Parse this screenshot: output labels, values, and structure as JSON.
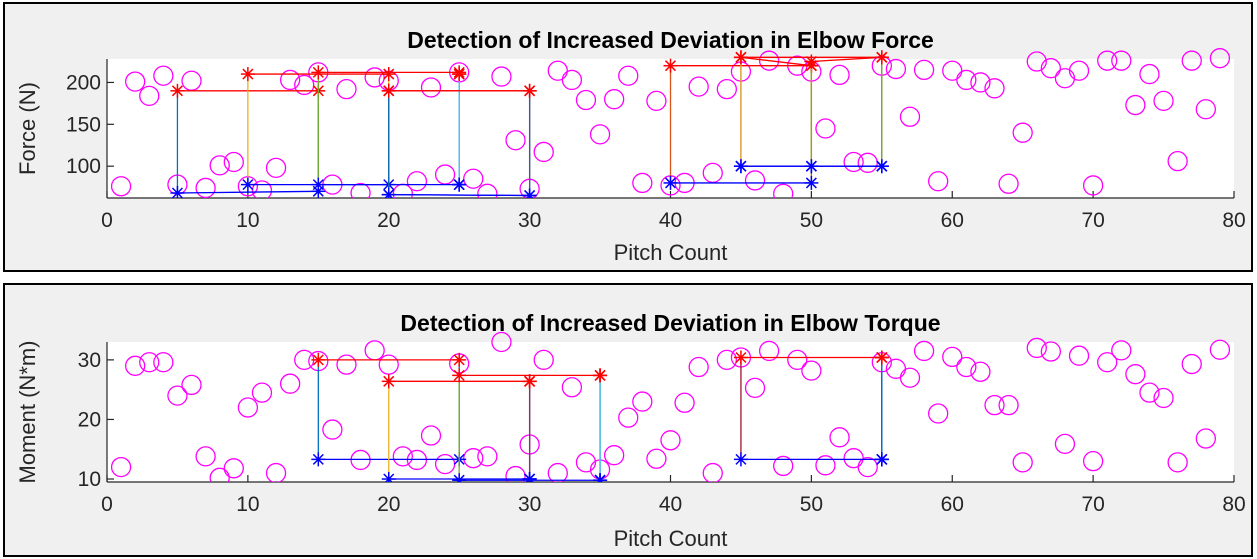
{
  "chart_data": [
    {
      "type": "scatter",
      "title": "Detection of Increased Deviation in Elbow Force",
      "xlabel": "Pitch Count",
      "ylabel": "Force (N)",
      "xlim": [
        0,
        80
      ],
      "ylim": [
        62,
        228
      ],
      "xticks": [
        "0",
        "10",
        "20",
        "30",
        "40",
        "50",
        "60",
        "70",
        "80"
      ],
      "xtick_values": [
        0,
        10,
        20,
        30,
        40,
        50,
        60,
        70,
        80
      ],
      "yticks": [
        "100",
        "150",
        "200"
      ],
      "ytick_values": [
        100,
        150,
        200
      ],
      "grid": false,
      "colors": {
        "points": "#ff00ff",
        "upper": "#ff0000",
        "lower": "#0000ff"
      },
      "points": [
        [
          1,
          76
        ],
        [
          2,
          201
        ],
        [
          3,
          184
        ],
        [
          4,
          208
        ],
        [
          5,
          78
        ],
        [
          6,
          202
        ],
        [
          7,
          74
        ],
        [
          8,
          101
        ],
        [
          9,
          105
        ],
        [
          10,
          76
        ],
        [
          11,
          71
        ],
        [
          12,
          98
        ],
        [
          13,
          203
        ],
        [
          14,
          197
        ],
        [
          15,
          212
        ],
        [
          16,
          78
        ],
        [
          17,
          192
        ],
        [
          18,
          68
        ],
        [
          19,
          206
        ],
        [
          20,
          202
        ],
        [
          21,
          67
        ],
        [
          22,
          82
        ],
        [
          23,
          194
        ],
        [
          24,
          90
        ],
        [
          25,
          212
        ],
        [
          26,
          85
        ],
        [
          27,
          67
        ],
        [
          28,
          207
        ],
        [
          29,
          131
        ],
        [
          30,
          73
        ],
        [
          31,
          117
        ],
        [
          32,
          214
        ],
        [
          33,
          203
        ],
        [
          34,
          179
        ],
        [
          35,
          138
        ],
        [
          36,
          180
        ],
        [
          37,
          208
        ],
        [
          38,
          80
        ],
        [
          39,
          178
        ],
        [
          40,
          77
        ],
        [
          41,
          80
        ],
        [
          42,
          195
        ],
        [
          43,
          92
        ],
        [
          44,
          192
        ],
        [
          45,
          213
        ],
        [
          46,
          83
        ],
        [
          47,
          226
        ],
        [
          48,
          67
        ],
        [
          49,
          220
        ],
        [
          50,
          213
        ],
        [
          51,
          145
        ],
        [
          52,
          209
        ],
        [
          53,
          105
        ],
        [
          54,
          104
        ],
        [
          55,
          220
        ],
        [
          56,
          216
        ],
        [
          57,
          159
        ],
        [
          58,
          215
        ],
        [
          59,
          82
        ],
        [
          60,
          214
        ],
        [
          61,
          203
        ],
        [
          62,
          200
        ],
        [
          63,
          193
        ],
        [
          64,
          79
        ],
        [
          65,
          140
        ],
        [
          66,
          225
        ],
        [
          67,
          217
        ],
        [
          68,
          205
        ],
        [
          69,
          214
        ],
        [
          70,
          77
        ],
        [
          71,
          226
        ],
        [
          72,
          226
        ],
        [
          73,
          173
        ],
        [
          74,
          210
        ],
        [
          75,
          178
        ],
        [
          76,
          106
        ],
        [
          77,
          226
        ],
        [
          78,
          168
        ],
        [
          79,
          229
        ]
      ],
      "windows": [
        {
          "x1": 5,
          "x2": 15,
          "upper": [
            190,
            190
          ],
          "lower": [
            68,
            70
          ],
          "color": "#0072bd"
        },
        {
          "x1": 10,
          "x2": 20,
          "upper": [
            210,
            210
          ],
          "lower": [
            78,
            78
          ],
          "color": "#edb120"
        },
        {
          "x1": 15,
          "x2": 25,
          "upper": [
            212,
            212
          ],
          "lower": [
            78,
            78
          ],
          "color": "#77ac30"
        },
        {
          "x1": 20,
          "x2": 30,
          "upper": [
            190,
            190
          ],
          "lower": [
            66,
            65
          ],
          "color": "#a2142f"
        },
        {
          "x1": 25,
          "x2": 25,
          "upper": [
            210,
            210
          ],
          "lower": [
            78,
            78
          ],
          "color": "#4dbeee"
        },
        {
          "x1": 20,
          "x2": 30,
          "upper": [
            190,
            190
          ],
          "lower": [
            66,
            65
          ],
          "color": "#0072bd"
        },
        {
          "x1": 40,
          "x2": 50,
          "upper": [
            220,
            220
          ],
          "lower": [
            80,
            80
          ],
          "color": "#d95319"
        },
        {
          "x1": 45,
          "x2": 55,
          "upper": [
            230,
            230
          ],
          "lower": [
            100,
            100
          ],
          "color": "#7e2f8e"
        },
        {
          "x1": 45,
          "x2": 50,
          "upper": [
            230,
            220
          ],
          "lower": [
            100,
            100
          ],
          "color": "#edb120"
        },
        {
          "x1": 50,
          "x2": 55,
          "upper": [
            225,
            230
          ],
          "lower": [
            100,
            100
          ],
          "color": "#77ac30"
        }
      ]
    },
    {
      "type": "scatter",
      "title": "Detection of Increased Deviation in Elbow Torque",
      "xlabel": "Pitch Count",
      "ylabel": "Moment (N*m)",
      "xlim": [
        0,
        80
      ],
      "ylim": [
        9.5,
        33
      ],
      "xticks": [
        "0",
        "10",
        "20",
        "30",
        "40",
        "50",
        "60",
        "70",
        "80"
      ],
      "xtick_values": [
        0,
        10,
        20,
        30,
        40,
        50,
        60,
        70,
        80
      ],
      "yticks": [
        "10",
        "20",
        "30"
      ],
      "ytick_values": [
        10,
        20,
        30
      ],
      "grid": false,
      "colors": {
        "points": "#ff00ff",
        "upper": "#ff0000",
        "lower": "#0000ff"
      },
      "points": [
        [
          1,
          12
        ],
        [
          2,
          29
        ],
        [
          3,
          29.6
        ],
        [
          4,
          29.6
        ],
        [
          5,
          24
        ],
        [
          6,
          25.8
        ],
        [
          7,
          13.8
        ],
        [
          8,
          10.2
        ],
        [
          9,
          11.8
        ],
        [
          10,
          22
        ],
        [
          11,
          24.5
        ],
        [
          12,
          11
        ],
        [
          13,
          26
        ],
        [
          14,
          30
        ],
        [
          15,
          29.8
        ],
        [
          16,
          18.3
        ],
        [
          17,
          29.2
        ],
        [
          18,
          13.2
        ],
        [
          19,
          31.6
        ],
        [
          20,
          29.2
        ],
        [
          21,
          13.8
        ],
        [
          22,
          13.2
        ],
        [
          23,
          17.3
        ],
        [
          24,
          12.5
        ],
        [
          25,
          29.4
        ],
        [
          26,
          13.5
        ],
        [
          27,
          13.8
        ],
        [
          28,
          33
        ],
        [
          29,
          10.5
        ],
        [
          30,
          15.8
        ],
        [
          31,
          30
        ],
        [
          32,
          11
        ],
        [
          33,
          25.4
        ],
        [
          34,
          12.8
        ],
        [
          35,
          11.6
        ],
        [
          36,
          14
        ],
        [
          37,
          20.3
        ],
        [
          38,
          23
        ],
        [
          39,
          13.4
        ],
        [
          40,
          16.5
        ],
        [
          41,
          22.8
        ],
        [
          42,
          28.8
        ],
        [
          43,
          11
        ],
        [
          44,
          30
        ],
        [
          45,
          30.4
        ],
        [
          46,
          25.3
        ],
        [
          47,
          31.5
        ],
        [
          48,
          12.2
        ],
        [
          49,
          30
        ],
        [
          50,
          28.2
        ],
        [
          51,
          12.3
        ],
        [
          52,
          17
        ],
        [
          53,
          13.5
        ],
        [
          54,
          12
        ],
        [
          55,
          29.6
        ],
        [
          56,
          28.5
        ],
        [
          57,
          27
        ],
        [
          58,
          31.5
        ],
        [
          59,
          21
        ],
        [
          60,
          30.5
        ],
        [
          61,
          28.8
        ],
        [
          62,
          28
        ],
        [
          63,
          22.4
        ],
        [
          64,
          22.4
        ],
        [
          65,
          12.8
        ],
        [
          66,
          32
        ],
        [
          67,
          31.4
        ],
        [
          68,
          15.9
        ],
        [
          69,
          30.7
        ],
        [
          70,
          13
        ],
        [
          71,
          29.6
        ],
        [
          72,
          31.6
        ],
        [
          73,
          27.6
        ],
        [
          74,
          24.5
        ],
        [
          75,
          23.6
        ],
        [
          76,
          12.8
        ],
        [
          77,
          29.3
        ],
        [
          78,
          16.8
        ],
        [
          79,
          31.7
        ]
      ],
      "windows": [
        {
          "x1": 15,
          "x2": 25,
          "upper": [
            30,
            30
          ],
          "lower": [
            13.3,
            13.3
          ],
          "color": "#0072bd"
        },
        {
          "x1": 20,
          "x2": 30,
          "upper": [
            26.4,
            26.4
          ],
          "lower": [
            10,
            10
          ],
          "color": "#edb120"
        },
        {
          "x1": 25,
          "x2": 35,
          "upper": [
            27.4,
            27.4
          ],
          "lower": [
            9.8,
            9.8
          ],
          "color": "#77ac30"
        },
        {
          "x1": 30,
          "x2": 30,
          "upper": [
            26.4,
            26.4
          ],
          "lower": [
            10,
            10
          ],
          "color": "#7e2f8e"
        },
        {
          "x1": 35,
          "x2": 35,
          "upper": [
            27.4,
            27.4
          ],
          "lower": [
            9.8,
            9.8
          ],
          "color": "#4dbeee"
        },
        {
          "x1": 45,
          "x2": 55,
          "upper": [
            30.4,
            30.4
          ],
          "lower": [
            13.3,
            13.3
          ],
          "color": "#a2142f"
        },
        {
          "x1": 55,
          "x2": 55,
          "upper": [
            30.4,
            30.4
          ],
          "lower": [
            13.3,
            13.3
          ],
          "color": "#0072bd"
        }
      ]
    }
  ]
}
